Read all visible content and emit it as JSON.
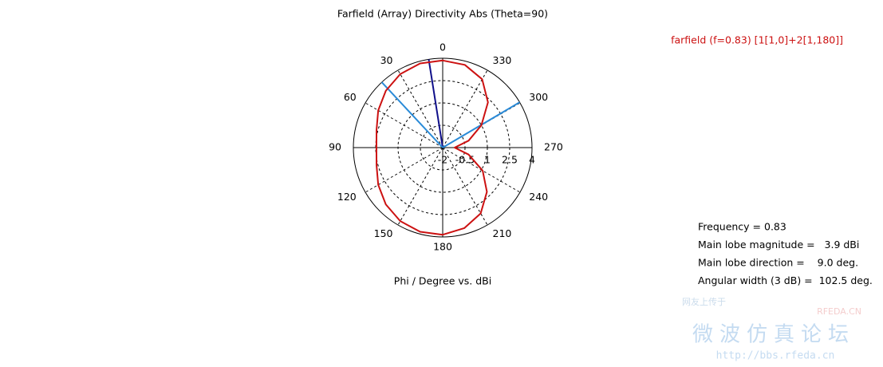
{
  "chart_data": {
    "type": "polar",
    "title": "Farfield (Array) Directivity Abs (Theta=90)",
    "legend_label": "farfield (f=0.83) [1[1,0]+2[1,180]]",
    "axis_label": "Phi / Degree vs. dBi",
    "angles": [
      0,
      15,
      30,
      45,
      60,
      75,
      90,
      105,
      120,
      135,
      150,
      165,
      180,
      195,
      210,
      225,
      240,
      255,
      270,
      285,
      300,
      315,
      330,
      345
    ],
    "series": [
      {
        "name": "farfield (f=0.83) [1[1,0]+2[1,180]]",
        "color": "#cc1111",
        "values": [
          3.85,
          3.85,
          3.7,
          3.4,
          3.0,
          2.6,
          2.45,
          2.6,
          3.0,
          3.4,
          3.7,
          3.85,
          3.85,
          3.6,
          3.1,
          2.2,
          1.1,
          -0.2,
          -1.2,
          -0.2,
          1.0,
          2.3,
          3.3,
          3.75
        ]
      }
    ],
    "rlim": [
      -2,
      4
    ],
    "rticks": [
      -2,
      -0.5,
      1,
      2.5,
      4
    ],
    "angle_ticks": [
      0,
      30,
      60,
      90,
      120,
      150,
      180,
      210,
      240,
      270,
      300,
      330
    ],
    "marker_lines": [
      {
        "angle": 9,
        "color": "#10108a"
      },
      {
        "angle": 43,
        "color": "#2a8bd8"
      },
      {
        "angle": 300.5,
        "color": "#2a8bd8"
      }
    ],
    "info": [
      "Frequency = 0.83",
      "Main lobe magnitude =   3.9 dBi",
      "Main lobe direction =    9.0 deg.",
      "Angular width (3 dB) =  102.5 deg."
    ]
  },
  "watermark": {
    "top": "网友上传于",
    "site": "RFEDA.CN",
    "name": "微波仿真论坛",
    "url": "http://bbs.rfeda.cn"
  }
}
